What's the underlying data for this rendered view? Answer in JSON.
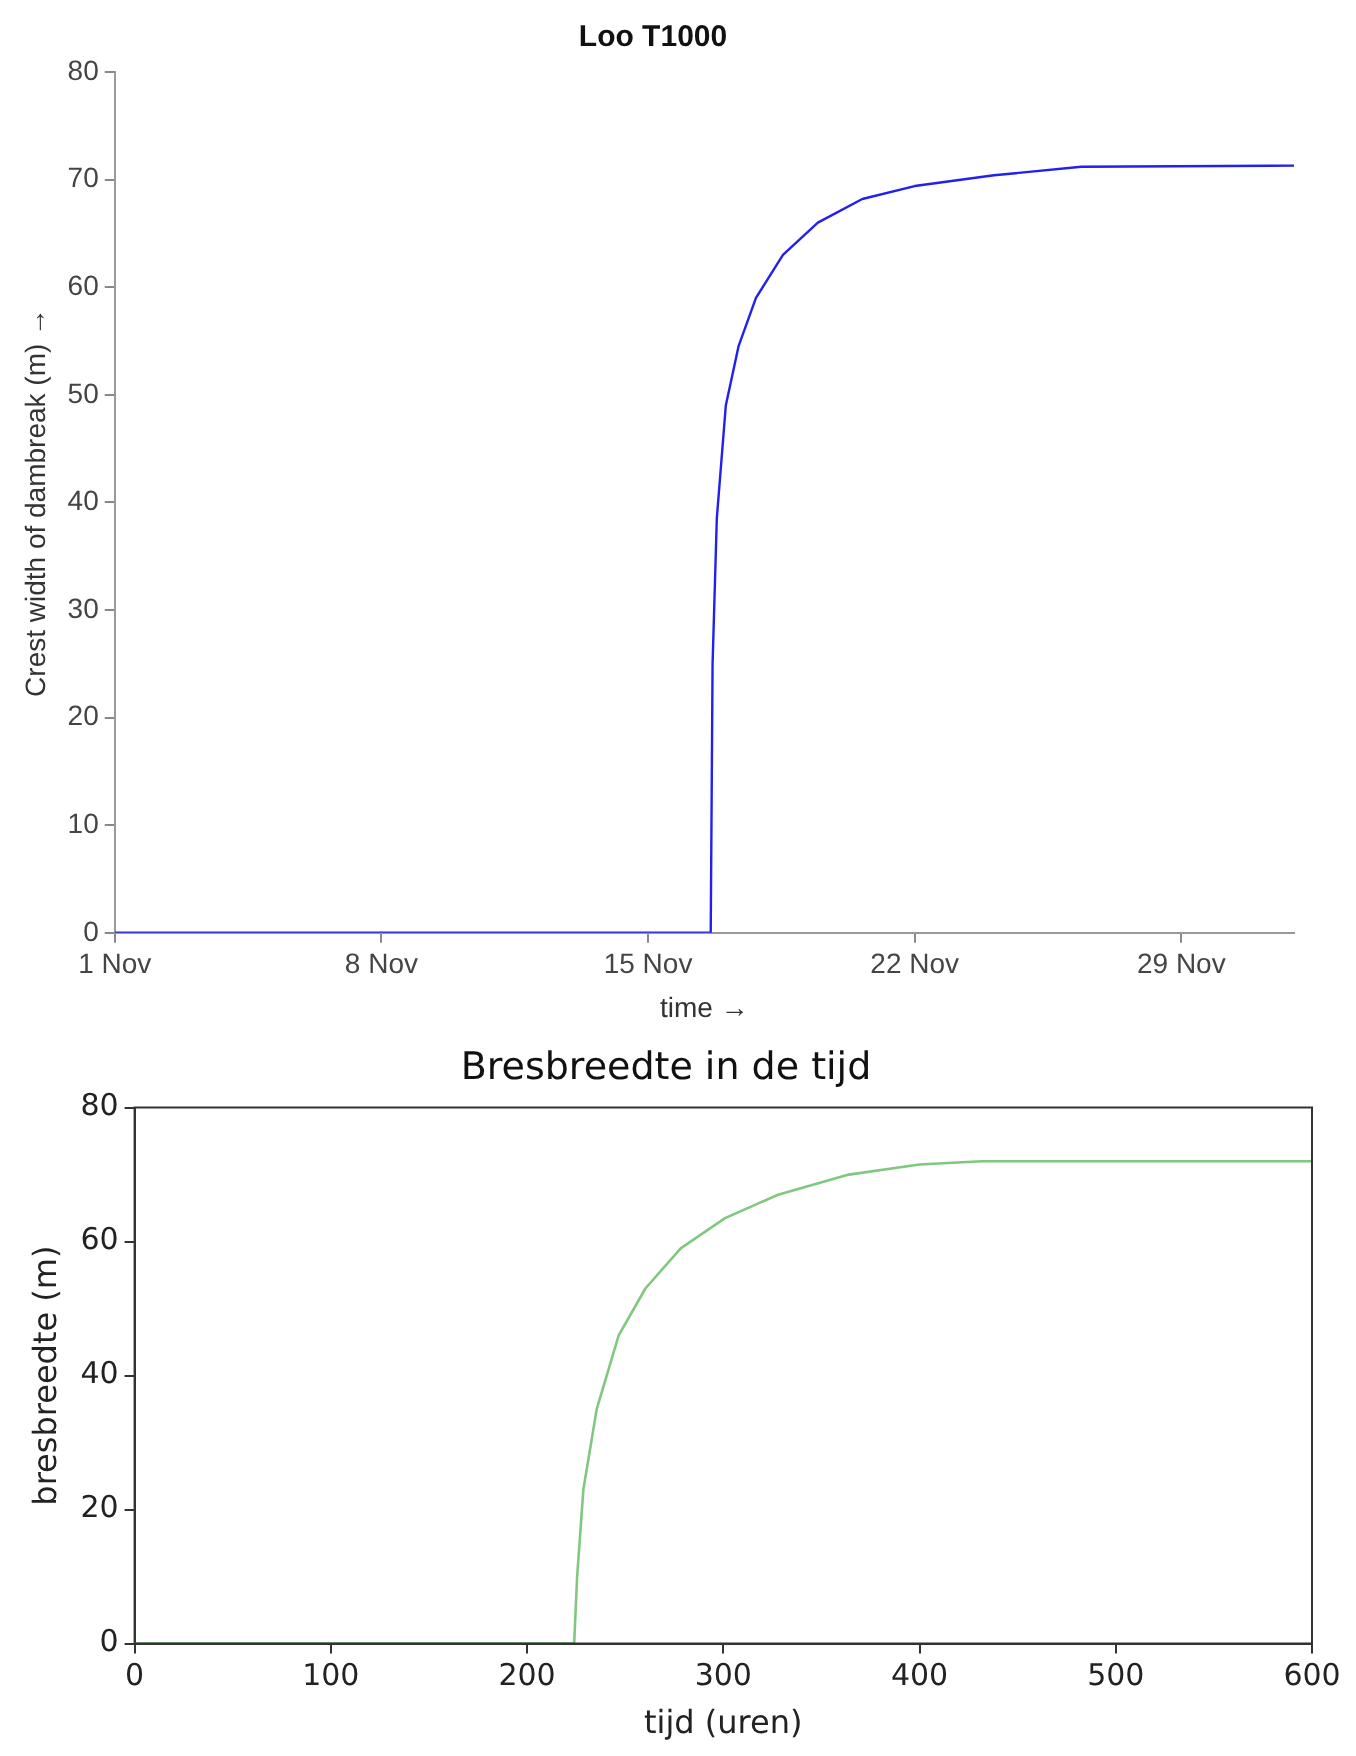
{
  "chart_data": [
    {
      "type": "line",
      "title": "Loo T1000",
      "xlabel": "time →",
      "ylabel": "Crest width of dambreak (m) →",
      "x": [
        "--11-01T00:00",
        "--11-16T15:30",
        "--11-16T16:40",
        "--11-16T19:20",
        "--11-17T01:00",
        "--11-17T09:00",
        "--11-17T20:00",
        "--11-18T13:00",
        "--11-19T11:00",
        "--11-20T15:00",
        "--11-22T00:00",
        "--11-24T02:00",
        "--11-26T09:00",
        "--12-01T23:00"
      ],
      "series": [
        {
          "color": "#2020f0",
          "values": [
            0,
            0,
            25,
            38.5,
            49,
            54.5,
            59,
            63,
            66,
            68.2,
            69.4,
            70.4,
            71.2,
            71.3
          ]
        }
      ],
      "xlim": [
        "--11-01T00:00",
        "--12-01T23:00"
      ],
      "xticks": [
        {
          "value": "--11-01",
          "label": "1 Nov"
        },
        {
          "value": "--11-08",
          "label": "8 Nov"
        },
        {
          "value": "--11-15",
          "label": "15 Nov"
        },
        {
          "value": "--11-22",
          "label": "22 Nov"
        },
        {
          "value": "--11-29",
          "label": "29 Nov"
        }
      ],
      "ylim": [
        0,
        80
      ],
      "yticks": [
        0,
        10,
        20,
        30,
        40,
        50,
        60,
        70,
        80
      ],
      "grid": false,
      "legend": false
    },
    {
      "type": "line",
      "title": "Bresbreedte in de tijd",
      "xlabel": "tijd (uren)",
      "ylabel": "bresbreedte (m)",
      "x": [
        0,
        224,
        225.5,
        228.7,
        235.5,
        246.7,
        260.3,
        278.3,
        300.9,
        327.9,
        364,
        400,
        431.7,
        600
      ],
      "series": [
        {
          "color": "#80c880",
          "values": [
            0,
            0,
            9.9,
            23,
            35,
            46,
            53,
            59,
            63.5,
            67,
            70,
            71.5,
            72,
            72
          ]
        }
      ],
      "xlim": [
        0,
        600
      ],
      "xticks": [
        0,
        100,
        200,
        300,
        400,
        500,
        600
      ],
      "ylim": [
        0,
        80
      ],
      "yticks": [
        0,
        20,
        40,
        60,
        80
      ],
      "grid": false,
      "legend": false
    }
  ]
}
